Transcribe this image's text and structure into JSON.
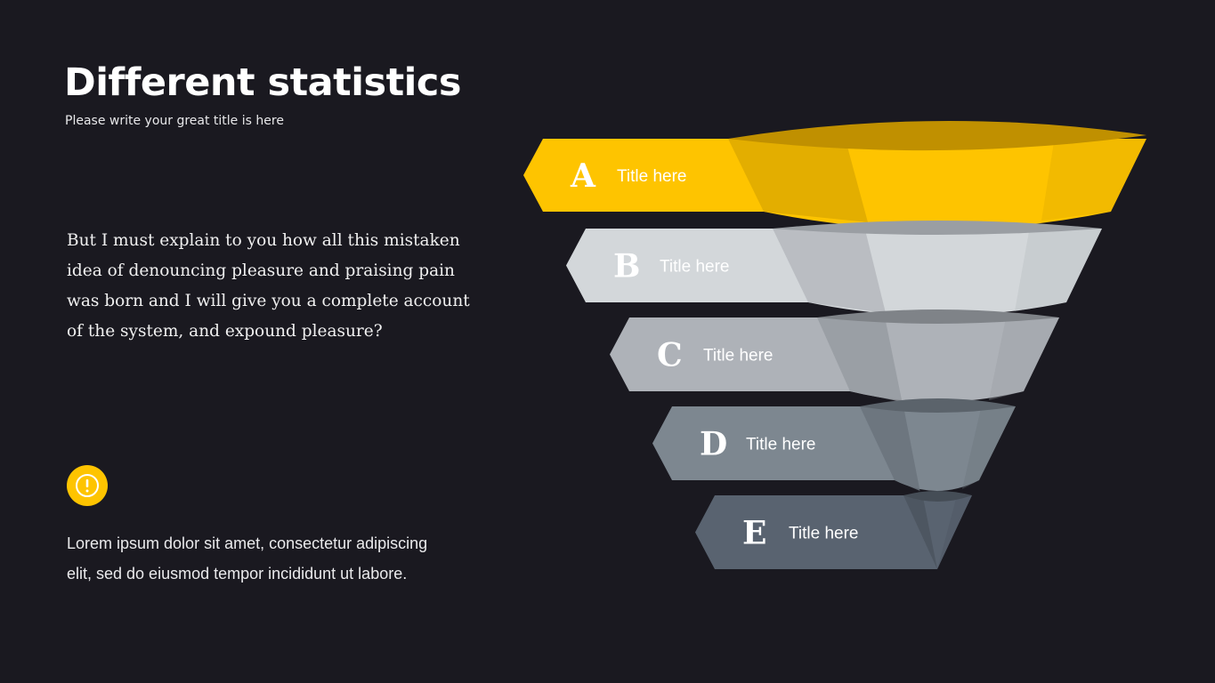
{
  "header": {
    "title": "Different statistics",
    "subtitle": "Please write your great title is here"
  },
  "body_text": "But I must explain to you how all this mistaken idea of denouncing pleasure and praising pain was born and I will give you a complete account of the system, and expound pleasure?",
  "note": {
    "icon": "exclamation-circle-icon",
    "text": "Lorem ipsum dolor sit amet, consectetur adipiscing elit, sed do eiusmod tempor incididunt ut labore."
  },
  "funnel": {
    "levels": [
      {
        "letter": "A",
        "label": "Title here",
        "color": "#fec400"
      },
      {
        "letter": "B",
        "label": "Title here",
        "color": "#d3d7da"
      },
      {
        "letter": "C",
        "label": "Title here",
        "color": "#aeb2b8"
      },
      {
        "letter": "D",
        "label": "Title here",
        "color": "#7d8790"
      },
      {
        "letter": "E",
        "label": "Title here",
        "color": "#596370"
      }
    ]
  },
  "colors": {
    "background": "#1a1920",
    "accent": "#fec400"
  }
}
